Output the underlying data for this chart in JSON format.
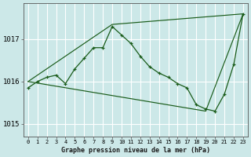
{
  "title": "Graphe pression niveau de la mer (hPa)",
  "bg_color": "#cce8e8",
  "grid_major_color": "#ffffff",
  "grid_minor_color": "#ddf0f0",
  "line_color": "#1a5c1a",
  "marker_color": "#1a5c1a",
  "xlim": [
    -0.5,
    23.5
  ],
  "ylim": [
    1014.7,
    1017.85
  ],
  "yticks": [
    1015,
    1016,
    1017
  ],
  "xticks": [
    0,
    1,
    2,
    3,
    4,
    5,
    6,
    7,
    8,
    9,
    10,
    11,
    12,
    13,
    14,
    15,
    16,
    17,
    18,
    19,
    20,
    21,
    22,
    23
  ],
  "series": [
    {
      "x": [
        0,
        1,
        2,
        3,
        4,
        5,
        6,
        7,
        8,
        9,
        10,
        11,
        12,
        13,
        14,
        15,
        16,
        17,
        18,
        19,
        20,
        21,
        22,
        23
      ],
      "y": [
        1015.85,
        1016.0,
        1016.1,
        1016.15,
        1015.95,
        1016.3,
        1016.55,
        1016.8,
        1016.8,
        1017.3,
        1017.1,
        1016.9,
        1016.6,
        1016.35,
        1016.2,
        1016.1,
        1015.95,
        1015.85,
        1015.45,
        1015.35,
        1015.3,
        1015.7,
        1016.4,
        1017.6
      ]
    },
    {
      "x": [
        0,
        9,
        23
      ],
      "y": [
        1016.0,
        1017.35,
        1017.6
      ]
    },
    {
      "x": [
        0,
        19,
        23
      ],
      "y": [
        1016.0,
        1015.3,
        1017.6
      ]
    }
  ]
}
